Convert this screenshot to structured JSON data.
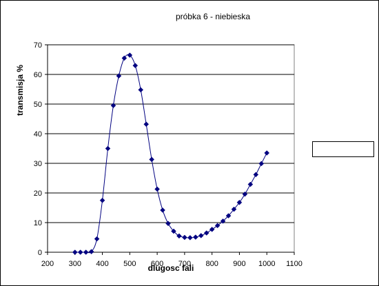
{
  "chart_data": {
    "type": "line",
    "title": "próbka 6 - niebieska",
    "xlabel": "dlugosc fali",
    "ylabel": "transmisja %",
    "xlim": [
      200,
      1100
    ],
    "ylim": [
      0,
      70
    ],
    "xticks": [
      "200",
      "300",
      "400",
      "500",
      "600",
      "700",
      "800",
      "900",
      "1000",
      "1100"
    ],
    "yticks": [
      "0",
      "10",
      "20",
      "30",
      "40",
      "50",
      "60",
      "70"
    ],
    "grid": "horizontal",
    "legend": "right",
    "series": [
      {
        "marker": "diamond",
        "color": "#000080",
        "x": [
          300,
          320,
          340,
          360,
          380,
          400,
          420,
          440,
          460,
          480,
          500,
          520,
          540,
          560,
          580,
          600,
          620,
          640,
          660,
          680,
          700,
          720,
          740,
          760,
          780,
          800,
          820,
          840,
          860,
          880,
          900,
          920,
          940,
          960,
          980,
          1000
        ],
        "values": [
          0,
          0,
          0,
          0.2,
          4.5,
          17.5,
          35,
          49.5,
          59.5,
          65.5,
          66.5,
          63,
          54.8,
          43.2,
          31.3,
          21.3,
          14.2,
          9.7,
          7.1,
          5.5,
          5,
          4.9,
          5.1,
          5.6,
          6.5,
          7.7,
          9,
          10.5,
          12.3,
          14.5,
          16.8,
          19.6,
          22.9,
          26.2,
          29.9,
          33.5
        ]
      }
    ]
  }
}
